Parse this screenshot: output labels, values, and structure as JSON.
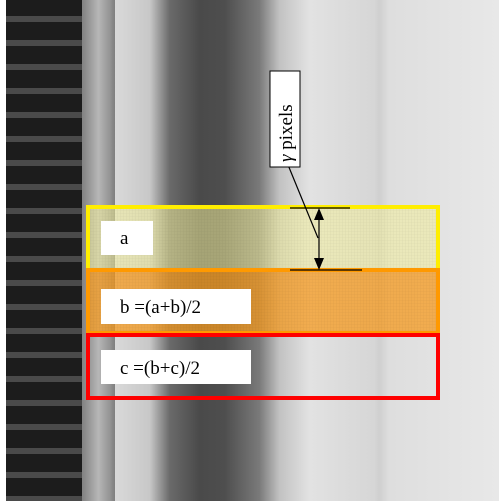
{
  "diagram": {
    "regions": [
      {
        "id": "a",
        "label": "a",
        "border_color": "#ffee00",
        "fill_color": "#f2ee9a",
        "fill_opacity": 0.55
      },
      {
        "id": "b",
        "label": "b =(a+b)/2",
        "border_color": "#ff9900",
        "fill_color": "#f59a1e",
        "fill_opacity": 0.75
      },
      {
        "id": "c",
        "label": "c =(b+c)/2",
        "border_color": "#ff0000",
        "fill_color": "none",
        "fill_opacity": 0
      }
    ],
    "annotation": {
      "symbol": "γ",
      "text": " pixels"
    }
  },
  "colors": {
    "dark_stripes": "#1a1a1a",
    "light_gap": "#5a5a5a",
    "background_light": "#e6e6e6",
    "dark_band": "#505050"
  }
}
